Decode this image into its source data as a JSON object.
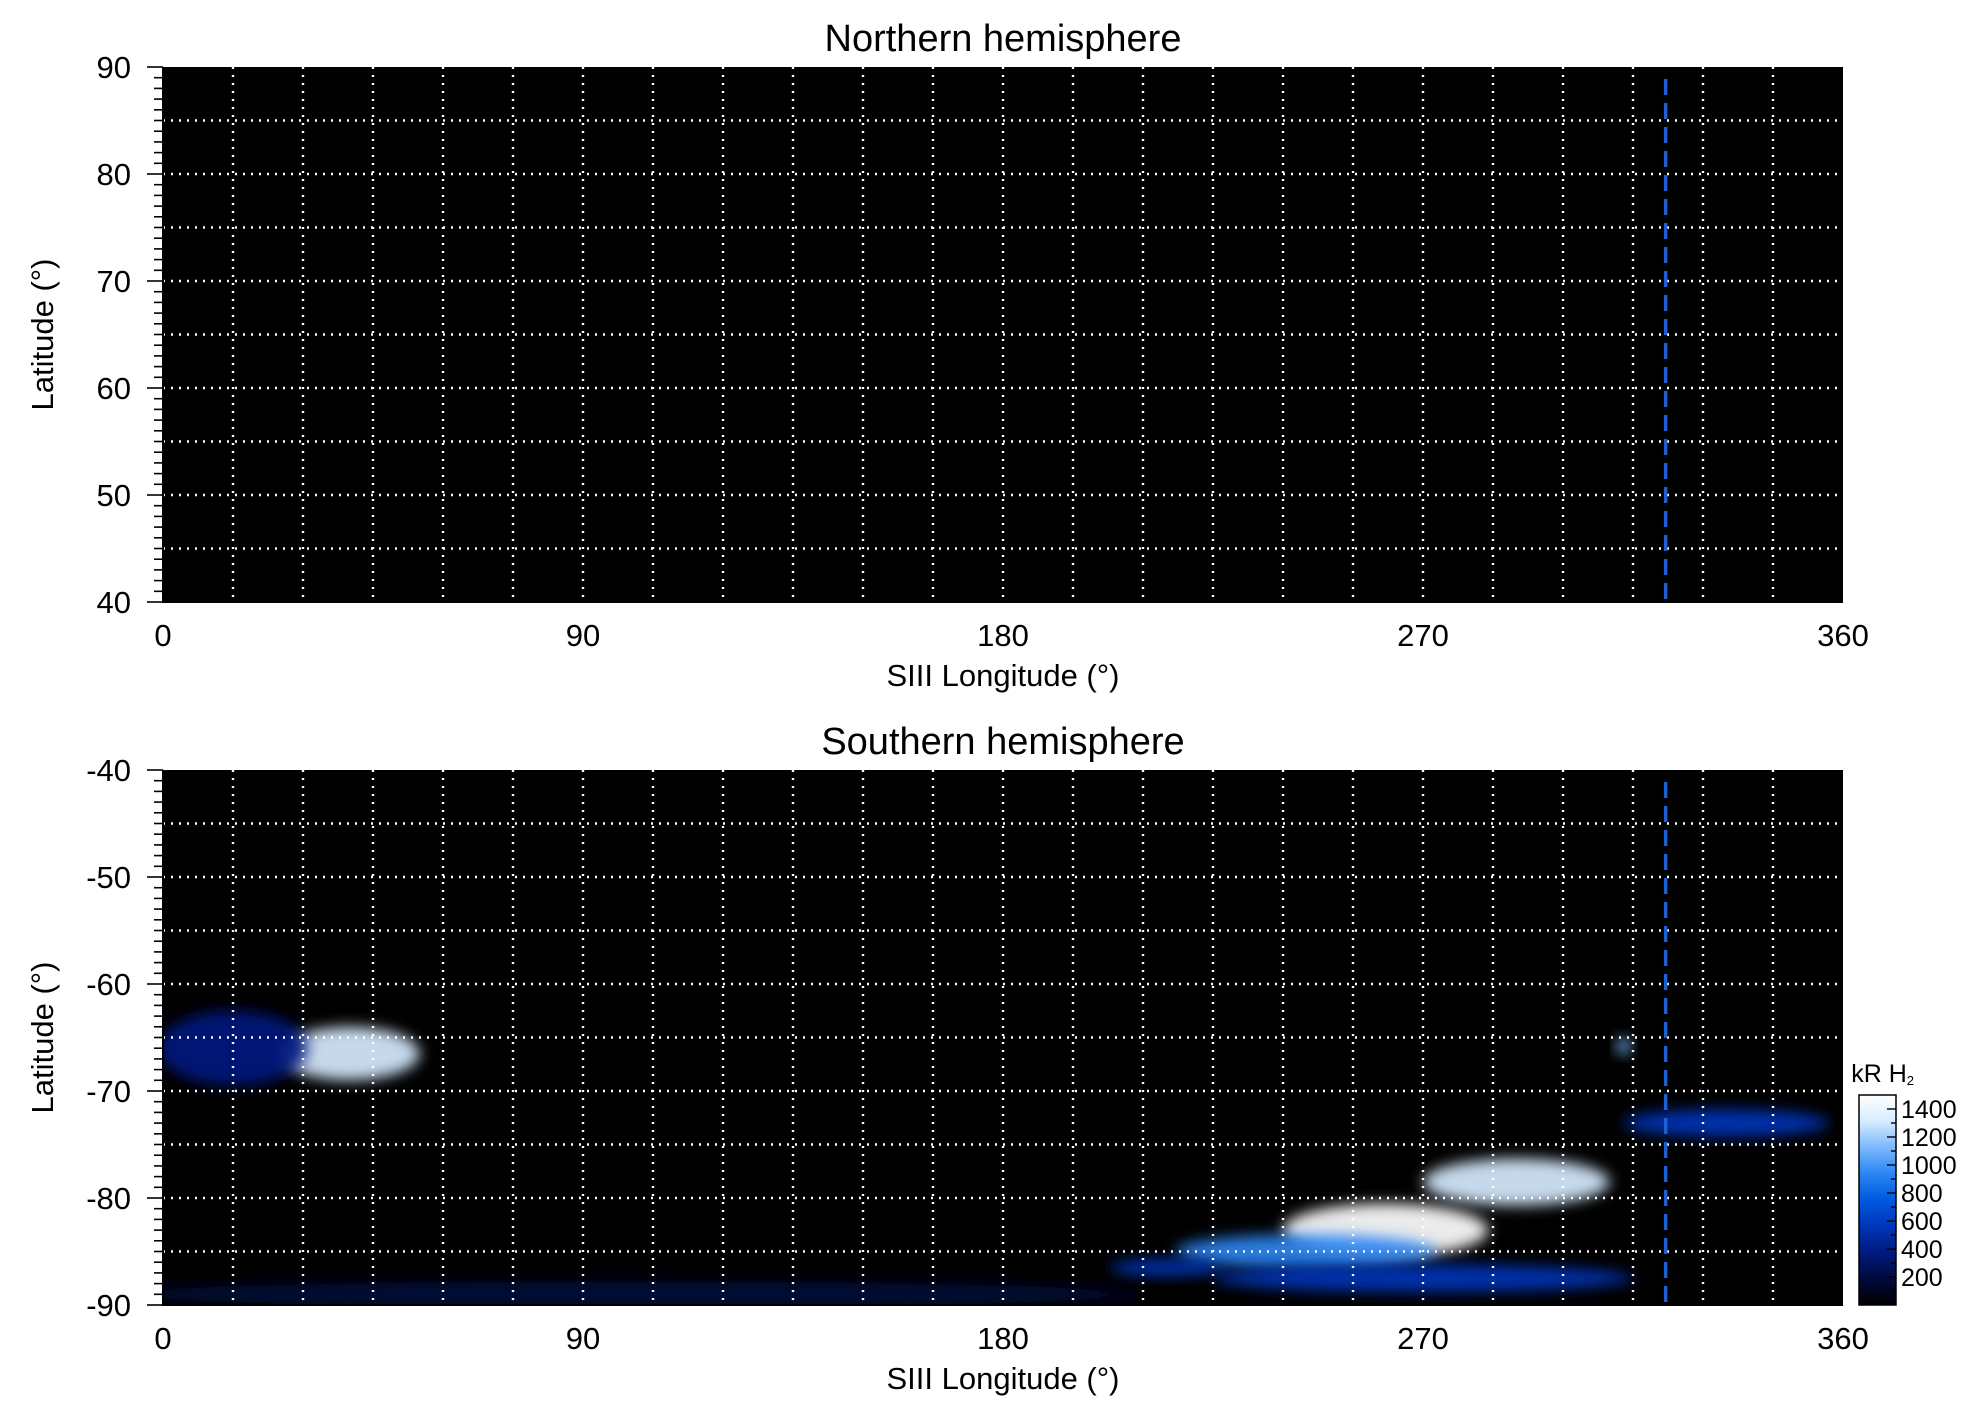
{
  "chart_data": [
    {
      "type": "heatmap",
      "title": "Northern hemisphere",
      "xlabel": "SIII Longitude (°)",
      "ylabel": "Latitude (°)",
      "xlim": [
        0,
        360
      ],
      "ylim": [
        40,
        90
      ],
      "x_ticks": [
        0,
        90,
        180,
        270,
        360
      ],
      "y_ticks": [
        40,
        50,
        60,
        70,
        80,
        90
      ],
      "grid": true,
      "grid_x_step": 15,
      "grid_y_step": 5,
      "marker_longitude": 322,
      "marker_color": "#1f5fd6",
      "background_color": "#000000",
      "emission_regions": []
    },
    {
      "type": "heatmap",
      "title": "Southern hemisphere",
      "xlabel": "SIII Longitude (°)",
      "ylabel": "Latitude (°)",
      "xlim": [
        0,
        360
      ],
      "ylim": [
        -90,
        -40
      ],
      "x_ticks": [
        0,
        90,
        180,
        270,
        360
      ],
      "y_ticks": [
        -90,
        -80,
        -70,
        -60,
        -50,
        -40
      ],
      "grid": true,
      "grid_x_step": 15,
      "grid_y_step": 5,
      "marker_longitude": 322,
      "marker_color": "#1f5fd6",
      "background_color": "#000000",
      "colorbar": {
        "label": "kR H",
        "label_subscript": "2",
        "ticks": [
          200,
          400,
          600,
          800,
          1000,
          1200,
          1400
        ],
        "range": [
          0,
          1500
        ],
        "colors": [
          "#000000",
          "#000a3c",
          "#001a7e",
          "#0035b8",
          "#0058e0",
          "#2a86f2",
          "#7ab8fb",
          "#d6ecff",
          "#ffffff"
        ]
      },
      "emission_regions": [
        {
          "lon": 40,
          "lat": -66.5,
          "lon_radius": 15,
          "lat_radius": 2.5,
          "intensity": 1300
        },
        {
          "lon": 15,
          "lat": -66.0,
          "lon_radius": 16,
          "lat_radius": 3.5,
          "intensity": 350
        },
        {
          "lon": 313,
          "lat": -65.8,
          "lon_radius": 1.5,
          "lat_radius": 0.8,
          "intensity": 1200
        },
        {
          "lon": 262,
          "lat": -83.0,
          "lon_radius": 22,
          "lat_radius": 2.5,
          "intensity": 1450
        },
        {
          "lon": 290,
          "lat": -78.5,
          "lon_radius": 20,
          "lat_radius": 2.2,
          "intensity": 1350
        },
        {
          "lon": 245,
          "lat": -85.0,
          "lon_radius": 28,
          "lat_radius": 1.6,
          "intensity": 850
        },
        {
          "lon": 270,
          "lat": -87.5,
          "lon_radius": 45,
          "lat_radius": 1.3,
          "intensity": 550
        },
        {
          "lon": 335,
          "lat": -73.0,
          "lon_radius": 22,
          "lat_radius": 1.3,
          "intensity": 600
        },
        {
          "lon": 215,
          "lat": -86.5,
          "lon_radius": 12,
          "lat_radius": 0.8,
          "intensity": 550
        },
        {
          "lon": 100,
          "lat": -89.0,
          "lon_radius": 110,
          "lat_radius": 1.2,
          "intensity": 180
        }
      ]
    }
  ]
}
